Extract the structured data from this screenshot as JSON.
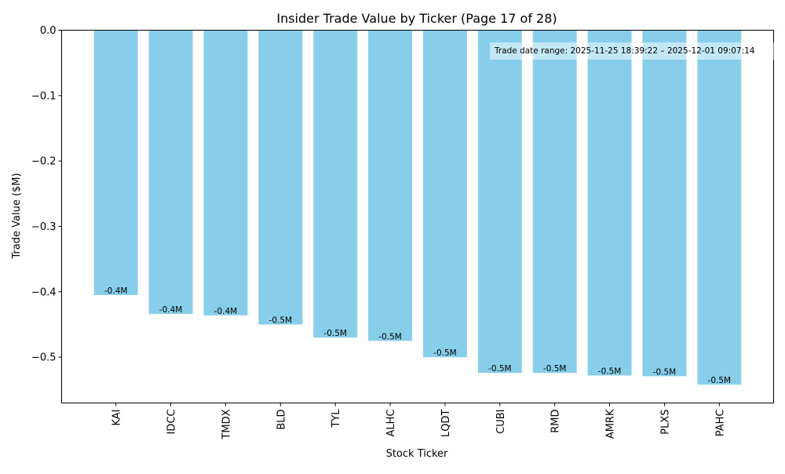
{
  "chart_data": {
    "type": "bar",
    "title": "Insider Trade Value by Ticker (Page 17 of 28)",
    "xlabel": "Stock Ticker",
    "ylabel": "Trade Value ($M)",
    "categories": [
      "KAI",
      "IDCC",
      "TMDX",
      "BLD",
      "TYL",
      "ALHC",
      "LQDT",
      "CUBI",
      "RMD",
      "AMRK",
      "PLXS",
      "PAHC"
    ],
    "values": [
      -0.405,
      -0.434,
      -0.436,
      -0.45,
      -0.47,
      -0.475,
      -0.5,
      -0.524,
      -0.524,
      -0.528,
      -0.529,
      -0.542
    ],
    "data_labels": [
      "-0.4M",
      "-0.4M",
      "-0.4M",
      "-0.5M",
      "-0.5M",
      "-0.5M",
      "-0.5M",
      "-0.5M",
      "-0.5M",
      "-0.5M",
      "-0.5M",
      "-0.5M"
    ],
    "ylim": [
      -0.57,
      0
    ],
    "yticks": [
      0,
      -0.1,
      -0.2,
      -0.3,
      -0.4,
      -0.5
    ],
    "ytick_labels": [
      "0.0",
      "−0.1",
      "−0.2",
      "−0.3",
      "−0.4",
      "−0.5"
    ],
    "grid": false,
    "bar_color": "#87CEEB",
    "annotation": "Trade date range: 2025-11-25 18:39:22 – 2025-12-01 09:07:14"
  }
}
